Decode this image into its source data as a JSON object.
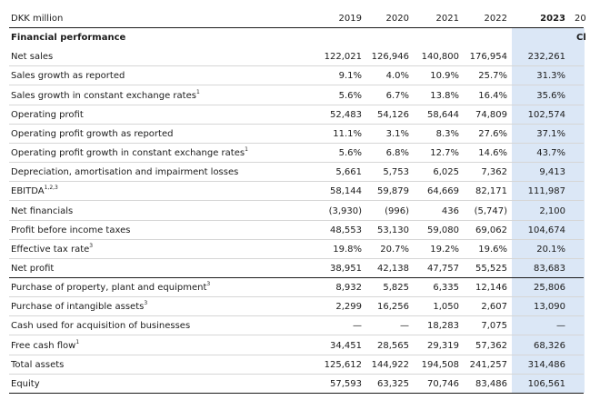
{
  "table": {
    "header": {
      "label": "DKK million",
      "columns": [
        "2019",
        "2020",
        "2021",
        "2022",
        "2023"
      ],
      "cut_column": "20"
    },
    "section": {
      "label": "Financial performance",
      "cut_text": "Cl"
    },
    "rows": [
      {
        "label": "Net sales",
        "values": [
          "122,021",
          "126,946",
          "140,800",
          "176,954",
          "232,261"
        ]
      },
      {
        "label": "Sales growth as reported",
        "values": [
          "9.1%",
          "4.0%",
          "10.9%",
          "25.7%",
          "31.3%"
        ]
      },
      {
        "label": "Sales growth in constant exchange rates",
        "note": "1",
        "values": [
          "5.6%",
          "6.7%",
          "13.8%",
          "16.4%",
          "35.6%"
        ]
      },
      {
        "label": "Operating profit",
        "values": [
          "52,483",
          "54,126",
          "58,644",
          "74,809",
          "102,574"
        ]
      },
      {
        "label": "Operating profit growth as reported",
        "values": [
          "11.1%",
          "3.1%",
          "8.3%",
          "27.6%",
          "37.1%"
        ]
      },
      {
        "label": "Operating profit growth in constant exchange rates",
        "note": "1",
        "values": [
          "5.6%",
          "6.8%",
          "12.7%",
          "14.6%",
          "43.7%"
        ]
      },
      {
        "label": "Depreciation, amortisation and impairment losses",
        "values": [
          "5,661",
          "5,753",
          "6,025",
          "7,362",
          "9,413"
        ]
      },
      {
        "label": "EBITDA",
        "note": "1,2,3",
        "values": [
          "58,144",
          "59,879",
          "64,669",
          "82,171",
          "111,987"
        ]
      },
      {
        "label": "Net financials",
        "values": [
          "(3,930)",
          "(996)",
          "436",
          "(5,747)",
          "2,100"
        ]
      },
      {
        "label": "Profit before income taxes",
        "values": [
          "48,553",
          "53,130",
          "59,080",
          "69,062",
          "104,674"
        ]
      },
      {
        "label": "Effective tax rate",
        "note": "3",
        "values": [
          "19.8%",
          "20.7%",
          "19.2%",
          "19.6%",
          "20.1%"
        ]
      },
      {
        "label": "Net profit",
        "values": [
          "38,951",
          "42,138",
          "47,757",
          "55,525",
          "83,683"
        ]
      },
      {
        "label": "Purchase of property, plant and equipment",
        "note": "3",
        "values": [
          "8,932",
          "5,825",
          "6,335",
          "12,146",
          "25,806"
        ]
      },
      {
        "label": "Purchase of intangible assets",
        "note": "3",
        "values": [
          "2,299",
          "16,256",
          "1,050",
          "2,607",
          "13,090"
        ]
      },
      {
        "label": "Cash used for acquisition of businesses",
        "values": [
          "—",
          "—",
          "18,283",
          "7,075",
          "—"
        ]
      },
      {
        "label": "Free cash flow",
        "note": "1",
        "values": [
          "34,451",
          "28,565",
          "29,319",
          "57,362",
          "68,326"
        ]
      },
      {
        "label": "Total assets",
        "values": [
          "125,612",
          "144,922",
          "194,508",
          "241,257",
          "314,486"
        ]
      },
      {
        "label": "Equity",
        "values": [
          "57,593",
          "63,325",
          "70,746",
          "83,486",
          "106,561"
        ]
      }
    ]
  }
}
